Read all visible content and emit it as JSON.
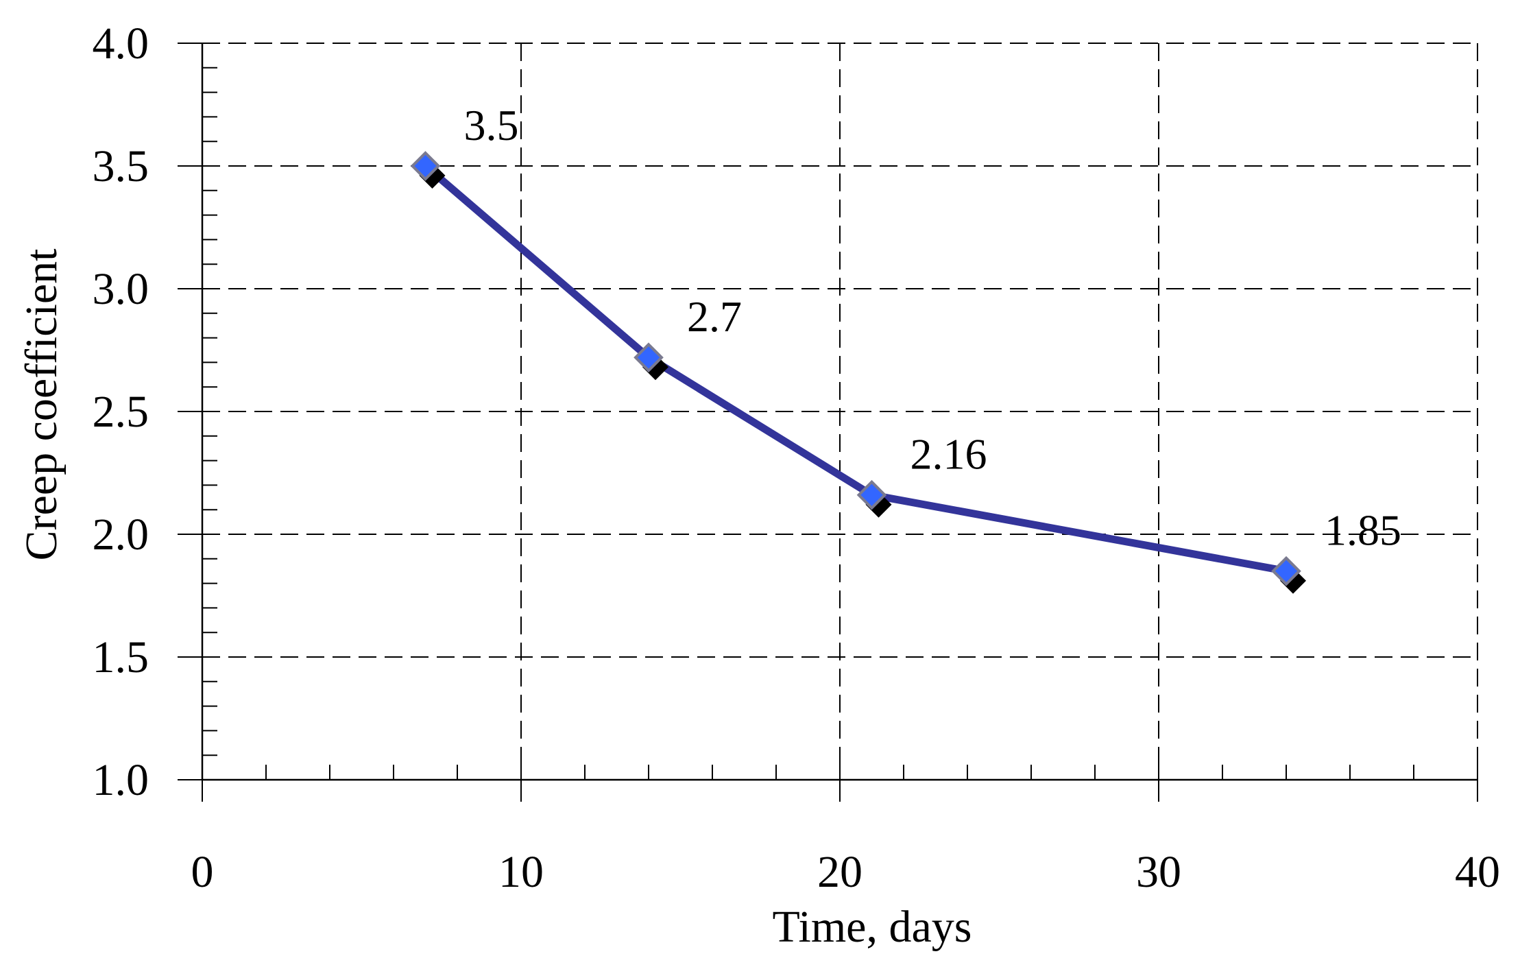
{
  "chart_data": {
    "type": "line",
    "title": "",
    "xlabel": "Time, days",
    "ylabel": "Creep coefficient",
    "xlim": [
      0,
      40
    ],
    "ylim": [
      1.0,
      4.0
    ],
    "x_ticks": [
      0,
      10,
      20,
      30,
      40
    ],
    "x_tick_labels": [
      "0",
      "10",
      "20",
      "30",
      "40"
    ],
    "y_ticks": [
      1.0,
      1.5,
      2.0,
      2.5,
      3.0,
      3.5,
      4.0
    ],
    "y_tick_labels": [
      "1.0",
      "1.5",
      "2.0",
      "2.5",
      "3.0",
      "3.5",
      "4.0"
    ],
    "x_minor_step": 2,
    "y_minor_step": 0.1,
    "grid": true,
    "legend": "none",
    "series": [
      {
        "x": [
          7,
          14,
          21,
          34
        ],
        "y": [
          3.5,
          2.72,
          2.16,
          1.85
        ],
        "data_labels": [
          "3.5",
          "2.7",
          "2.16",
          "1.85"
        ],
        "line_color": "#33349a",
        "marker": "diamond",
        "marker_fill": "#3366ff",
        "marker_shadow": "#000000"
      }
    ]
  }
}
